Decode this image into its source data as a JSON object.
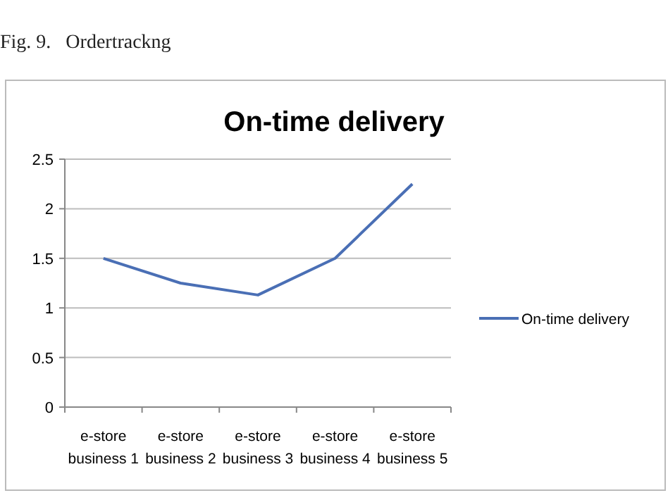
{
  "chart_data": {
    "type": "line",
    "title": "On-time delivery",
    "annotations": [
      "Fig. 9.   Ordertrackng"
    ],
    "categories": [
      "e-store business 1",
      "e-store business 2",
      "e-store business 3",
      "e-store business 4",
      "e-store business 5"
    ],
    "series": [
      {
        "name": "On-time delivery",
        "color": "#4a6fb5",
        "values": [
          1.5,
          1.25,
          1.13,
          1.5,
          2.25
        ]
      }
    ],
    "ylim": [
      0,
      2.5
    ],
    "yticks": [
      0,
      0.5,
      1,
      1.5,
      2,
      2.5
    ],
    "grid": "y",
    "legend": "right",
    "marker": "none"
  }
}
